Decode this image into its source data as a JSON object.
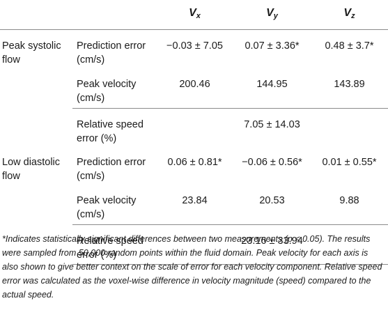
{
  "table": {
    "headers": {
      "vx_main": "V",
      "vx_sub": "x",
      "vy_main": "V",
      "vy_sub": "y",
      "vz_main": "V",
      "vz_sub": "z"
    },
    "sections": [
      {
        "group_line1": "Peak systolic",
        "group_line2": "flow",
        "rows": [
          {
            "metric_line1": "Prediction error",
            "metric_line2": "(cm/s)",
            "vx": "−0.03 ± 7.05",
            "vy": "0.07 ± 3.36*",
            "vz": "0.48 ± 3.7*"
          },
          {
            "metric_line1": "Peak velocity",
            "metric_line2": "(cm/s)",
            "vx": "200.46",
            "vy": "144.95",
            "vz": "143.89"
          },
          {
            "metric_line1": "Relative speed",
            "metric_line2": "error (%)",
            "merged": "7.05 ± 14.03"
          }
        ]
      },
      {
        "group_line1": "Low diastolic",
        "group_line2": "flow",
        "rows": [
          {
            "metric_line1": "Prediction error",
            "metric_line2": "(cm/s)",
            "vx": "0.06 ± 0.81*",
            "vy": "−0.06 ± 0.56*",
            "vz": "0.01 ± 0.55*"
          },
          {
            "metric_line1": "Peak velocity",
            "metric_line2": "(cm/s)",
            "vx": "23.84",
            "vy": "20.53",
            "vz": "9.88"
          },
          {
            "metric_line1": "Relative speed",
            "metric_line2": "error (%)",
            "merged": "23.16 ± 33.94"
          }
        ]
      }
    ]
  },
  "footnote": "*Indicates statistically significant differences between two measurements (p < 0.05). The results were sampled from 50,000 random points within the fluid domain. Peak velocity for each axis is also shown to give better context on the scale of error for each velocity component. Relative speed error was calculated as the voxel-wise difference in velocity magnitude (speed) compared to the actual speed."
}
